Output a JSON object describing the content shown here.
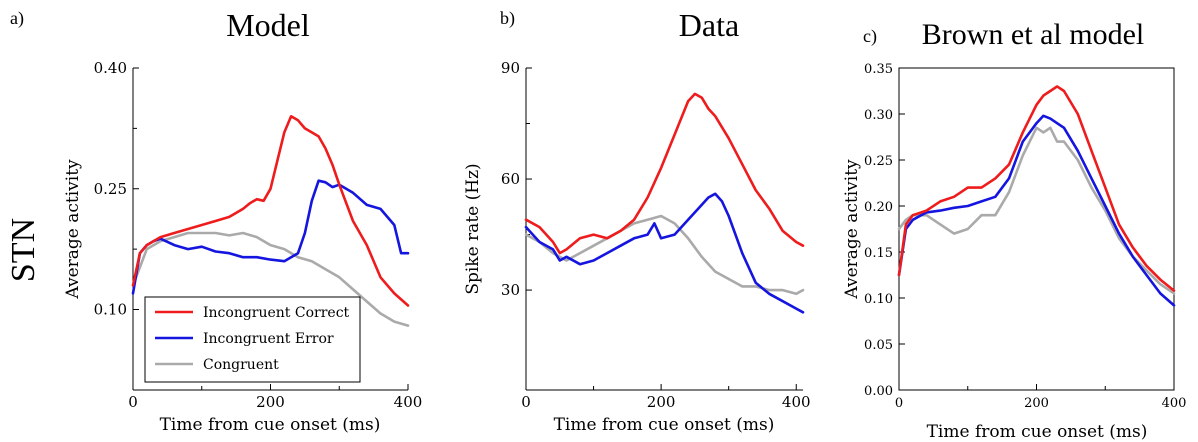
{
  "row_label": "STN",
  "colors": {
    "incongruent_correct": "#ee1c1c",
    "incongruent_error": "#1515e0",
    "congruent": "#aaaaaa"
  },
  "chart_data": [
    {
      "id": "a",
      "type": "line",
      "panel_letter": "a)",
      "title": "Model",
      "xlabel": "Time from cue onset (ms)",
      "ylabel": "Average activity",
      "xlim": [
        0,
        400
      ],
      "ylim": [
        0.0,
        0.4
      ],
      "xticks": [
        0,
        200,
        400
      ],
      "yticks": [
        0.1,
        0.25,
        0.4
      ],
      "ytick_labels": [
        "0.10",
        "0.25",
        "0.40"
      ],
      "legend": {
        "position": "lower-left",
        "entries": [
          "Incongruent Correct",
          "Incongruent Error",
          "Congruent"
        ]
      },
      "series": [
        {
          "name": "Incongruent Correct",
          "color": "#ee1c1c",
          "x": [
            0,
            10,
            20,
            40,
            60,
            80,
            100,
            120,
            140,
            160,
            170,
            180,
            190,
            200,
            210,
            220,
            230,
            240,
            250,
            260,
            270,
            280,
            290,
            300,
            320,
            340,
            360,
            380,
            400
          ],
          "y": [
            0.13,
            0.17,
            0.18,
            0.19,
            0.195,
            0.2,
            0.205,
            0.21,
            0.215,
            0.225,
            0.232,
            0.237,
            0.235,
            0.25,
            0.285,
            0.32,
            0.34,
            0.335,
            0.325,
            0.32,
            0.315,
            0.3,
            0.28,
            0.255,
            0.21,
            0.18,
            0.14,
            0.12,
            0.105
          ]
        },
        {
          "name": "Incongruent Error",
          "color": "#1515e0",
          "x": [
            0,
            10,
            20,
            30,
            40,
            60,
            80,
            100,
            120,
            140,
            160,
            180,
            200,
            220,
            240,
            250,
            260,
            270,
            280,
            290,
            300,
            320,
            340,
            360,
            380,
            390,
            400
          ],
          "y": [
            0.12,
            0.17,
            0.18,
            0.185,
            0.188,
            0.18,
            0.175,
            0.178,
            0.172,
            0.17,
            0.165,
            0.165,
            0.162,
            0.16,
            0.17,
            0.195,
            0.235,
            0.26,
            0.258,
            0.252,
            0.255,
            0.245,
            0.23,
            0.225,
            0.205,
            0.17,
            0.17
          ]
        },
        {
          "name": "Congruent",
          "color": "#aaaaaa",
          "x": [
            0,
            20,
            40,
            60,
            80,
            100,
            120,
            140,
            160,
            180,
            200,
            220,
            240,
            260,
            280,
            300,
            320,
            340,
            360,
            380,
            400
          ],
          "y": [
            0.13,
            0.175,
            0.185,
            0.19,
            0.195,
            0.195,
            0.195,
            0.192,
            0.195,
            0.19,
            0.18,
            0.175,
            0.165,
            0.16,
            0.15,
            0.14,
            0.125,
            0.11,
            0.095,
            0.085,
            0.08
          ]
        }
      ]
    },
    {
      "id": "b",
      "type": "line",
      "panel_letter": "b)",
      "title": "Data",
      "xlabel": "Time from cue onset (ms)",
      "ylabel": "Spike rate (Hz)",
      "xlim": [
        0,
        410
      ],
      "ylim": [
        3,
        90
      ],
      "xticks": [
        0,
        200,
        400
      ],
      "yticks": [
        30,
        60,
        90
      ],
      "ytick_labels": [
        "30",
        "60",
        "90"
      ],
      "series": [
        {
          "name": "Incongruent Correct",
          "color": "#ee1c1c",
          "x": [
            0,
            20,
            40,
            50,
            60,
            80,
            100,
            120,
            140,
            160,
            180,
            200,
            220,
            240,
            250,
            260,
            270,
            280,
            300,
            320,
            340,
            360,
            380,
            400,
            410
          ],
          "y": [
            49,
            47,
            43,
            40,
            41,
            44,
            45,
            44,
            46,
            49,
            55,
            63,
            72,
            81,
            83,
            82,
            79,
            77,
            71,
            64,
            57,
            52,
            46,
            43,
            42
          ]
        },
        {
          "name": "Incongruent Error",
          "color": "#1515e0",
          "x": [
            0,
            20,
            40,
            50,
            60,
            80,
            100,
            120,
            140,
            160,
            180,
            190,
            200,
            220,
            240,
            260,
            270,
            280,
            290,
            300,
            320,
            340,
            360,
            380,
            400,
            410
          ],
          "y": [
            47,
            43,
            41,
            38,
            39,
            37,
            38,
            40,
            42,
            44,
            45,
            48,
            44,
            45,
            49,
            53,
            55,
            56,
            54,
            50,
            40,
            32,
            29,
            27,
            25,
            24
          ]
        },
        {
          "name": "Congruent",
          "color": "#aaaaaa",
          "x": [
            0,
            20,
            40,
            60,
            80,
            100,
            120,
            140,
            160,
            180,
            200,
            220,
            240,
            260,
            280,
            300,
            320,
            340,
            360,
            380,
            400,
            410
          ],
          "y": [
            45,
            43,
            40,
            38,
            40,
            42,
            44,
            46,
            48,
            49,
            50,
            48,
            44,
            39,
            35,
            33,
            31,
            31,
            30,
            30,
            29,
            30
          ]
        }
      ]
    },
    {
      "id": "c",
      "type": "line",
      "panel_letter": "c)",
      "title": "Brown et al model",
      "xlabel": "Time from cue onset (ms)",
      "ylabel": "Average activity",
      "xlim": [
        0,
        400
      ],
      "ylim": [
        0.0,
        0.35
      ],
      "xticks": [
        0,
        200,
        400
      ],
      "yticks": [
        0.0,
        0.05,
        0.1,
        0.15,
        0.2,
        0.25,
        0.3,
        0.35
      ],
      "ytick_labels": [
        "0.00",
        "0.05",
        "0.10",
        "0.15",
        "0.20",
        "0.25",
        "0.30",
        "0.35"
      ],
      "series": [
        {
          "name": "Incongruent Correct",
          "color": "#ee1c1c",
          "x": [
            0,
            10,
            20,
            40,
            60,
            80,
            100,
            120,
            140,
            160,
            180,
            200,
            210,
            220,
            230,
            240,
            260,
            280,
            300,
            320,
            340,
            360,
            380,
            400
          ],
          "y": [
            0.125,
            0.18,
            0.19,
            0.195,
            0.205,
            0.21,
            0.22,
            0.22,
            0.23,
            0.245,
            0.28,
            0.31,
            0.32,
            0.325,
            0.33,
            0.325,
            0.3,
            0.26,
            0.22,
            0.18,
            0.155,
            0.135,
            0.12,
            0.108
          ]
        },
        {
          "name": "Incongruent Error",
          "color": "#1515e0",
          "x": [
            0,
            10,
            20,
            40,
            60,
            80,
            100,
            120,
            140,
            160,
            180,
            200,
            210,
            220,
            230,
            240,
            260,
            280,
            300,
            320,
            340,
            360,
            380,
            400
          ],
          "y": [
            0.125,
            0.175,
            0.185,
            0.193,
            0.195,
            0.198,
            0.2,
            0.205,
            0.21,
            0.23,
            0.27,
            0.29,
            0.298,
            0.295,
            0.29,
            0.285,
            0.26,
            0.23,
            0.2,
            0.17,
            0.145,
            0.125,
            0.105,
            0.092
          ]
        },
        {
          "name": "Congruent",
          "color": "#aaaaaa",
          "x": [
            0,
            10,
            20,
            40,
            60,
            80,
            100,
            120,
            140,
            160,
            180,
            200,
            210,
            220,
            230,
            240,
            260,
            280,
            300,
            320,
            340,
            360,
            380,
            400
          ],
          "y": [
            0.175,
            0.185,
            0.19,
            0.19,
            0.18,
            0.17,
            0.175,
            0.19,
            0.19,
            0.215,
            0.255,
            0.285,
            0.28,
            0.285,
            0.27,
            0.27,
            0.25,
            0.22,
            0.195,
            0.165,
            0.145,
            0.13,
            0.115,
            0.105
          ]
        }
      ]
    }
  ]
}
